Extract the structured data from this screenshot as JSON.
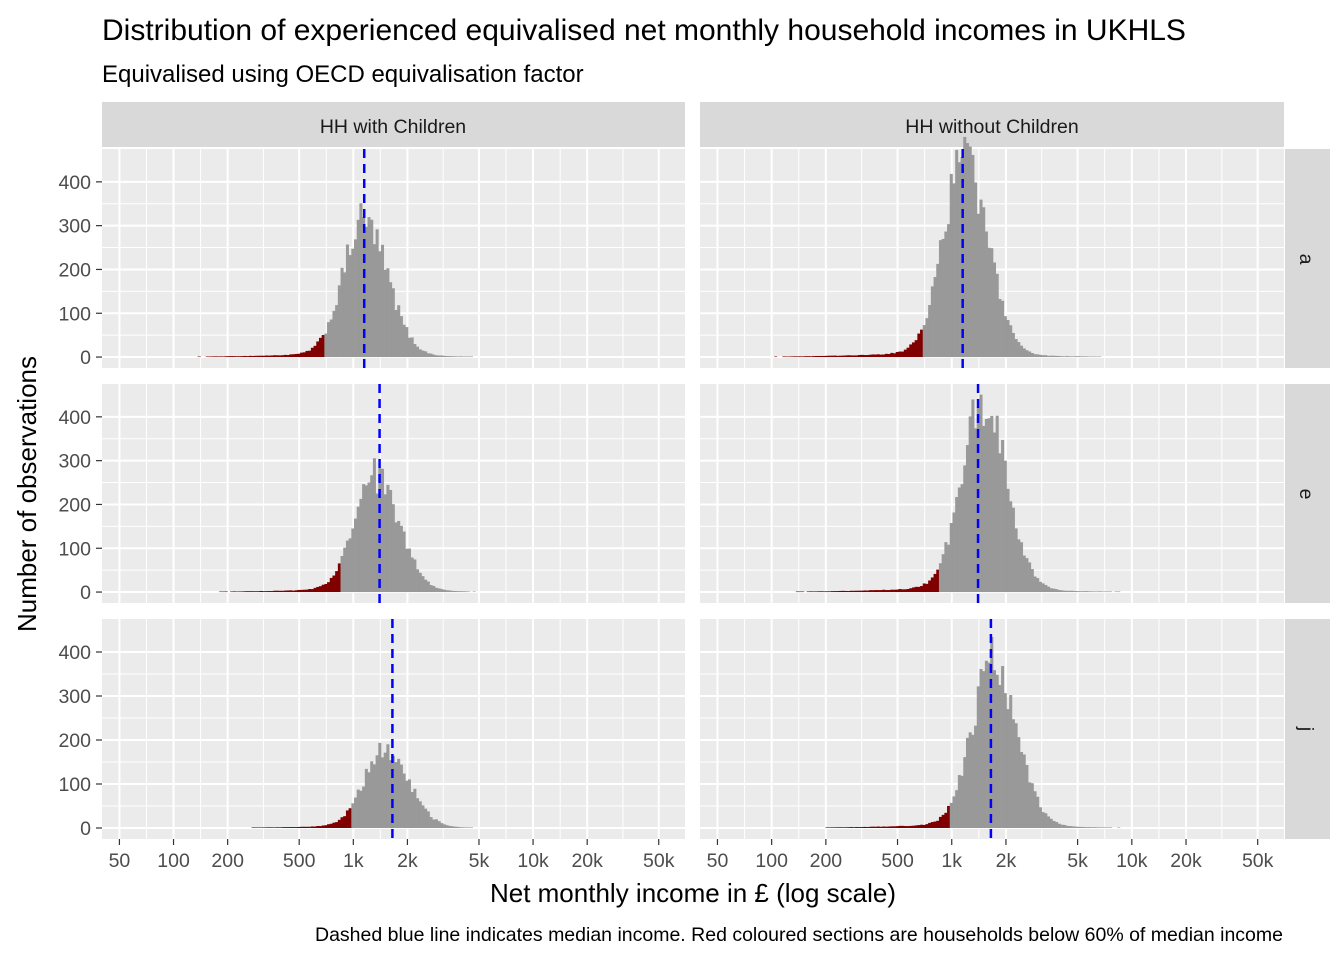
{
  "chart_data": {
    "type": "bar",
    "title": "Distribution of experienced equivalised net monthly household incomes in UKHLS",
    "subtitle": "Equivalised using OECD equivalisation factor",
    "caption": "Dashed blue line indicates median income. Red coloured sections are households below 60% of median income",
    "xlabel": "Net monthly income in £ (log scale)",
    "ylabel": "Number of observations",
    "x_scale": "log10",
    "xlim": [
      40,
      70000
    ],
    "ylim": [
      -25,
      475
    ],
    "x_ticks": [
      {
        "value": 50,
        "label": "50"
      },
      {
        "value": 100,
        "label": "100"
      },
      {
        "value": 200,
        "label": "200"
      },
      {
        "value": 500,
        "label": "500"
      },
      {
        "value": 1000,
        "label": "1k"
      },
      {
        "value": 2000,
        "label": "2k"
      },
      {
        "value": 5000,
        "label": "5k"
      },
      {
        "value": 10000,
        "label": "10k"
      },
      {
        "value": 20000,
        "label": "20k"
      },
      {
        "value": 50000,
        "label": "50k"
      }
    ],
    "y_ticks": [
      {
        "value": 0,
        "label": "0"
      },
      {
        "value": 100,
        "label": "100"
      },
      {
        "value": 200,
        "label": "200"
      },
      {
        "value": 300,
        "label": "300"
      },
      {
        "value": 400,
        "label": "400"
      }
    ],
    "columns": [
      "HH with Children",
      "HH without Children"
    ],
    "rows": [
      "a",
      "e",
      "j"
    ],
    "colors": {
      "below_threshold": "#800000",
      "above_threshold": "#999999",
      "median_line": "#0000ff",
      "panel_bg": "#ebebeb",
      "strip_bg": "#d9d9d9",
      "grid": "#ffffff"
    },
    "panels": [
      {
        "row": "a",
        "column": "HH with Children",
        "median": 1150,
        "threshold": 700,
        "peak_x": 1150,
        "peak_y": 300
      },
      {
        "row": "a",
        "column": "HH without Children",
        "median": 1150,
        "threshold": 700,
        "peak_x": 1170,
        "peak_y": 440
      },
      {
        "row": "e",
        "column": "HH with Children",
        "median": 1400,
        "threshold": 850,
        "peak_x": 1330,
        "peak_y": 255
      },
      {
        "row": "e",
        "column": "HH without Children",
        "median": 1400,
        "threshold": 850,
        "peak_x": 1480,
        "peak_y": 430
      },
      {
        "row": "j",
        "column": "HH with Children",
        "median": 1650,
        "threshold": 990,
        "peak_x": 1500,
        "peak_y": 175
      },
      {
        "row": "j",
        "column": "HH without Children",
        "median": 1650,
        "threshold": 990,
        "peak_x": 1700,
        "peak_y": 365
      }
    ]
  }
}
